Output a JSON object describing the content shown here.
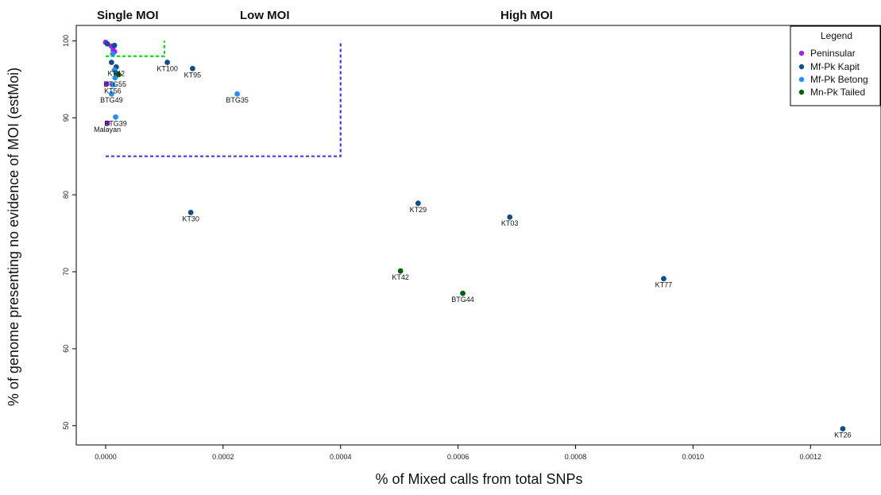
{
  "chart_data": {
    "type": "scatter",
    "xlabel": "% of Mixed calls from total SNPs",
    "ylabel": "% of genome presenting no evidence of  MOI (estMoi)",
    "xlim": [
      -5e-05,
      0.00132
    ],
    "ylim": [
      47.5,
      102
    ],
    "x_ticks": [
      "0.0000",
      "0.0002",
      "0.0004",
      "0.0006",
      "0.0008",
      "0.0010",
      "0.0012"
    ],
    "x_tick_values": [
      0,
      0.0002,
      0.0004,
      0.0006,
      0.0008,
      0.001,
      0.0012
    ],
    "y_ticks": [
      "50",
      "60",
      "70",
      "80",
      "90",
      "100"
    ],
    "y_tick_values": [
      50,
      60,
      70,
      80,
      90,
      100
    ],
    "grid": false,
    "regions": [
      {
        "label": "Single MOI",
        "color": "#00e600",
        "x": [
          0,
          0.0001
        ],
        "y": [
          98,
          100
        ]
      },
      {
        "label": "Low MOI",
        "color": "#3b3bff",
        "x": [
          0,
          0.0004
        ],
        "y": [
          85,
          100
        ]
      },
      {
        "label": "High MOI"
      }
    ],
    "legend": {
      "title": "Legend",
      "position": "top-right",
      "entries": [
        {
          "name": "Peninsular",
          "color": "#a020f0"
        },
        {
          "name": "Mf-Pk Kapit",
          "color": "#104e8b"
        },
        {
          "name": "Mf-Pk Betong",
          "color": "#1e90ff"
        },
        {
          "name": "Mn-Pk Tailed",
          "color": "#006400"
        }
      ]
    },
    "series": [
      {
        "name": "Peninsular",
        "color": "#a020f0",
        "points": [
          {
            "x": 0.0,
            "y": 99.8,
            "label": ""
          },
          {
            "x": 1e-05,
            "y": 99.3,
            "label": ""
          },
          {
            "x": 1.3e-05,
            "y": 98.8,
            "label": ""
          },
          {
            "x": 1.5e-05,
            "y": 98.6,
            "label": ""
          },
          {
            "x": 2e-06,
            "y": 94.4,
            "label": ""
          },
          {
            "x": 3e-06,
            "y": 89.3,
            "label": "Malayan"
          }
        ]
      },
      {
        "name": "Mf-Pk Kapit",
        "color": "#104e8b",
        "points": [
          {
            "x": 3e-06,
            "y": 99.6,
            "label": ""
          },
          {
            "x": 1.5e-05,
            "y": 99.4,
            "label": ""
          },
          {
            "x": 1e-05,
            "y": 97.2,
            "label": ""
          },
          {
            "x": 1.8e-05,
            "y": 96.6,
            "label": "KT42"
          },
          {
            "x": 1.8e-05,
            "y": 95.8,
            "label": ""
          },
          {
            "x": 0.000105,
            "y": 97.2,
            "label": "KT100"
          },
          {
            "x": 0.000148,
            "y": 96.4,
            "label": "KT95"
          },
          {
            "x": 0.000145,
            "y": 77.7,
            "label": "KT30"
          },
          {
            "x": 0.000532,
            "y": 78.9,
            "label": "KT29"
          },
          {
            "x": 0.000688,
            "y": 77.1,
            "label": "KT03"
          },
          {
            "x": 0.00095,
            "y": 69.1,
            "label": "KT77"
          },
          {
            "x": 0.001255,
            "y": 49.6,
            "label": "KT26"
          }
        ]
      },
      {
        "name": "Mf-Pk Betong",
        "color": "#1e90ff",
        "points": [
          {
            "x": 1.2e-05,
            "y": 98.3,
            "label": ""
          },
          {
            "x": 1.5e-05,
            "y": 96.2,
            "label": ""
          },
          {
            "x": 1.6e-05,
            "y": 95.2,
            "label": "BTG55"
          },
          {
            "x": 1.2e-05,
            "y": 94.3,
            "label": "KT56"
          },
          {
            "x": 1e-05,
            "y": 93.1,
            "label": "BTG49"
          },
          {
            "x": 1.7e-05,
            "y": 90.1,
            "label": "BTG39"
          },
          {
            "x": 0.000224,
            "y": 93.1,
            "label": "BTG35"
          }
        ]
      },
      {
        "name": "Mn-Pk Tailed",
        "color": "#006400",
        "points": [
          {
            "x": 2.2e-05,
            "y": 95.6,
            "label": ""
          },
          {
            "x": 0.000502,
            "y": 70.1,
            "label": "KT42"
          },
          {
            "x": 0.000608,
            "y": 67.2,
            "label": "BTG44"
          }
        ]
      }
    ]
  }
}
